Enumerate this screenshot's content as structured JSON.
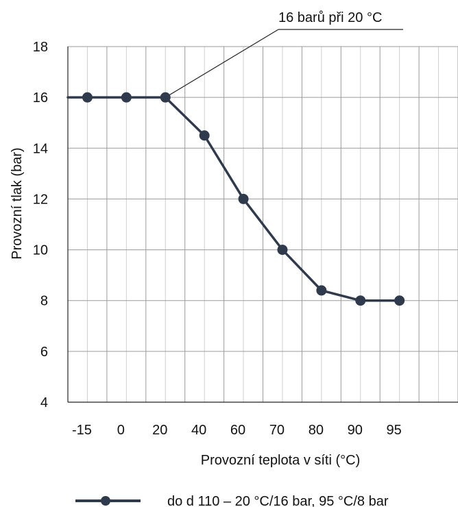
{
  "chart_data": {
    "type": "line",
    "categories": [
      "-15",
      "0",
      "20",
      "40",
      "60",
      "70",
      "80",
      "90",
      "95",
      ""
    ],
    "x": [
      -15,
      0,
      20,
      40,
      60,
      70,
      80,
      90,
      95
    ],
    "series": [
      {
        "name": "do d 110 – 20 °C/16 bar, 95 °C/8 bar",
        "values": [
          16,
          16,
          16,
          14.5,
          12,
          10,
          8.4,
          8,
          8
        ]
      }
    ],
    "xlabel": "Provozní teplota v síti (°C)",
    "ylabel": "Provozní tlak (bar)",
    "ylim": [
      4,
      18
    ],
    "yticks": [
      4,
      6,
      8,
      10,
      12,
      14,
      16,
      18
    ],
    "annotation": "16 barů při 20 °C",
    "grid": true,
    "legend": "bottom",
    "colors": {
      "series": "#2f3b4d",
      "major_grid": "#9a9a9a",
      "minor_grid": "#cfcfcf",
      "axis": "#222222"
    }
  }
}
